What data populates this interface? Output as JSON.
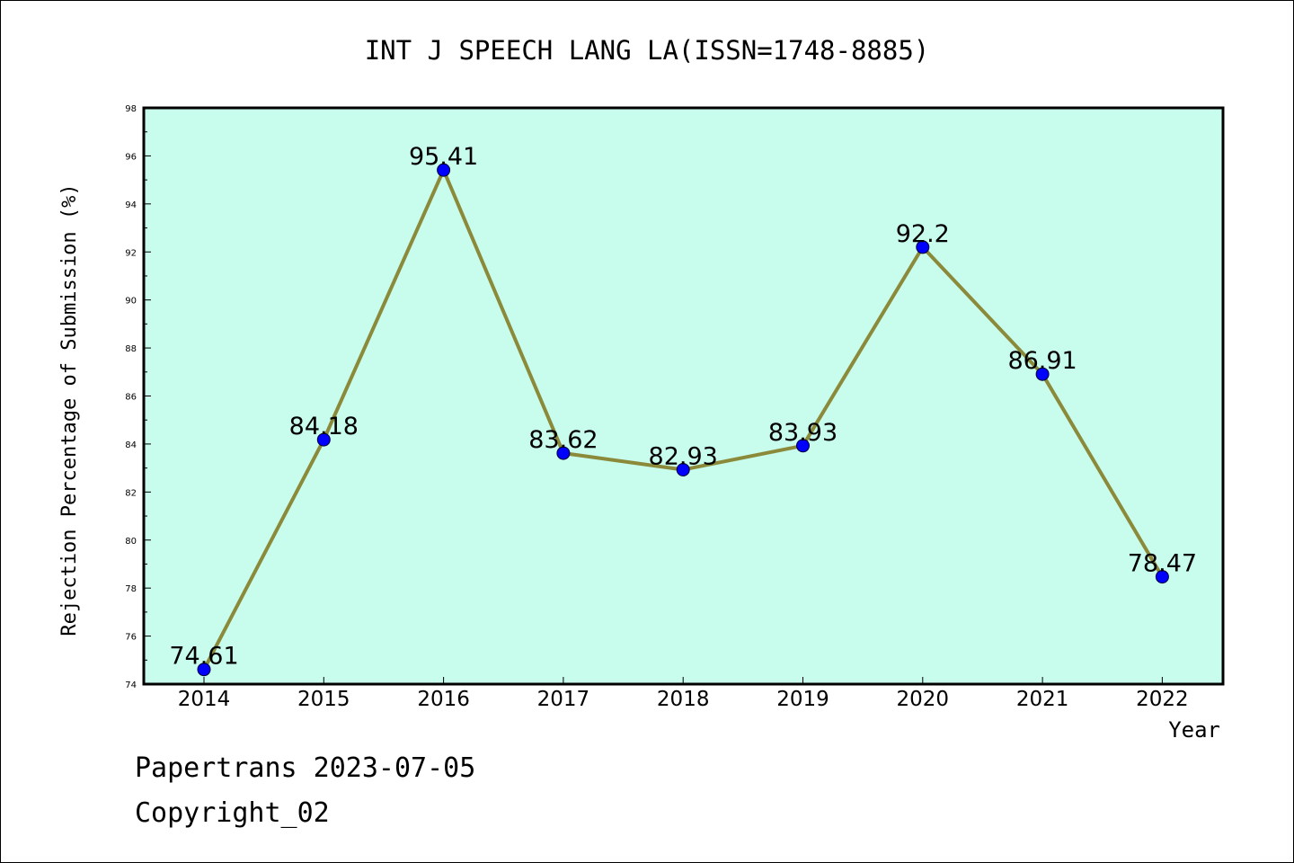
{
  "chart_data": {
    "type": "line",
    "title": "INT J SPEECH LANG LA(ISSN=1748-8885)",
    "xlabel": "Year",
    "ylabel": "Rejection Percentage of Submission (%)",
    "categories": [
      "2014",
      "2015",
      "2016",
      "2017",
      "2018",
      "2019",
      "2020",
      "2021",
      "2022"
    ],
    "series": [
      {
        "values": [
          74.61,
          84.18,
          95.41,
          83.62,
          82.93,
          83.93,
          92.2,
          86.91,
          78.47
        ],
        "labels": [
          "74.61",
          "84.18",
          "95.41",
          "83.62",
          "82.93",
          "83.93",
          "92.2",
          "86.91",
          "78.47"
        ]
      }
    ],
    "ylim": [
      74,
      98
    ],
    "yticks": [
      "74",
      "76",
      "78",
      "80",
      "82",
      "84",
      "86",
      "88",
      "90",
      "92",
      "94",
      "96",
      "98"
    ],
    "grid": false,
    "colors": {
      "plot_background": "#c8fcec",
      "line": "#8b8a3a",
      "marker": "#0000ff",
      "axis": "#000000"
    }
  },
  "footer": {
    "source": "Papertrans 2023-07-05",
    "copyright": "Copyright_02"
  }
}
